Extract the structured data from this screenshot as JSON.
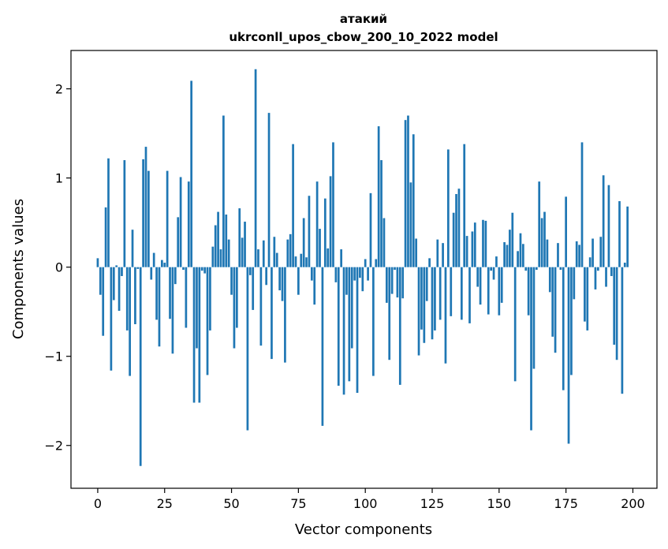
{
  "chart_data": {
    "type": "bar",
    "title_line1": "атакий",
    "title_line2": "ukrconll_upos_cbow_200_10_2022 model",
    "xlabel": "Vector components",
    "ylabel": "Components values",
    "xlim": [
      -10,
      209
    ],
    "ylim": [
      -2.48,
      2.43
    ],
    "xticks": [
      0,
      25,
      50,
      75,
      100,
      125,
      150,
      175,
      200
    ],
    "xtick_labels": [
      "0",
      "25",
      "50",
      "75",
      "100",
      "125",
      "150",
      "175",
      "200"
    ],
    "yticks": [
      -2,
      -1,
      0,
      1,
      2
    ],
    "ytick_labels": [
      "−2",
      "−1",
      "0",
      "1",
      "2"
    ],
    "bar_color": "#1f77b4",
    "grid": false,
    "values": [
      0.1,
      -0.31,
      -0.77,
      0.67,
      1.22,
      -1.16,
      -0.37,
      0.02,
      -0.49,
      -0.1,
      1.2,
      -0.71,
      -1.22,
      0.42,
      -0.64,
      -0.02,
      -2.23,
      1.21,
      1.35,
      1.08,
      -0.14,
      0.16,
      -0.59,
      -0.89,
      0.08,
      0.05,
      1.08,
      -0.58,
      -0.97,
      -0.19,
      0.56,
      1.01,
      -0.03,
      -0.68,
      0.96,
      2.09,
      -1.52,
      -0.91,
      -1.52,
      -0.04,
      -0.07,
      -1.21,
      -0.71,
      0.23,
      0.47,
      0.62,
      0.2,
      1.7,
      0.59,
      0.31,
      -0.31,
      -0.91,
      -0.68,
      0.66,
      0.33,
      0.51,
      -1.83,
      -0.09,
      -0.48,
      2.22,
      0.2,
      -0.88,
      0.3,
      -0.2,
      1.73,
      -1.03,
      0.34,
      0.16,
      -0.26,
      -0.38,
      -1.07,
      0.31,
      0.37,
      1.38,
      0.12,
      -0.31,
      0.15,
      0.55,
      0.11,
      0.8,
      -0.15,
      -0.42,
      0.96,
      0.43,
      -1.78,
      0.77,
      0.21,
      1.02,
      1.4,
      -0.17,
      -1.33,
      0.2,
      -1.43,
      -0.31,
      -1.28,
      -0.91,
      -0.15,
      -1.41,
      -0.12,
      -0.27,
      0.09,
      -0.15,
      0.83,
      -1.22,
      0.09,
      1.58,
      1.2,
      0.55,
      -0.4,
      -1.04,
      -0.3,
      -0.03,
      -0.34,
      -1.32,
      -0.35,
      1.65,
      1.7,
      0.95,
      1.49,
      0.32,
      -0.99,
      -0.7,
      -0.85,
      -0.38,
      0.1,
      -0.81,
      -0.71,
      0.31,
      -0.59,
      0.27,
      -1.08,
      1.32,
      -0.55,
      0.61,
      0.82,
      0.88,
      -0.59,
      1.38,
      0.35,
      -0.63,
      0.4,
      0.5,
      -0.22,
      -0.42,
      0.53,
      0.52,
      -0.53,
      -0.04,
      -0.14,
      0.12,
      -0.54,
      -0.4,
      0.28,
      0.25,
      0.42,
      0.61,
      -1.28,
      0.18,
      0.38,
      0.26,
      -0.04,
      -0.54,
      -1.83,
      -1.14,
      -0.03,
      0.96,
      0.55,
      0.62,
      0.31,
      -0.28,
      -0.78,
      -0.96,
      0.27,
      -0.03,
      -1.38,
      0.79,
      -1.98,
      -1.21,
      -0.36,
      0.29,
      0.25,
      1.4,
      -0.61,
      -0.71,
      0.11,
      0.32,
      -0.25,
      -0.04,
      0.34,
      1.03,
      -0.22,
      0.92,
      -0.1,
      -0.87,
      -1.04,
      0.74,
      -1.42,
      0.05,
      0.68,
      0.0
    ]
  }
}
